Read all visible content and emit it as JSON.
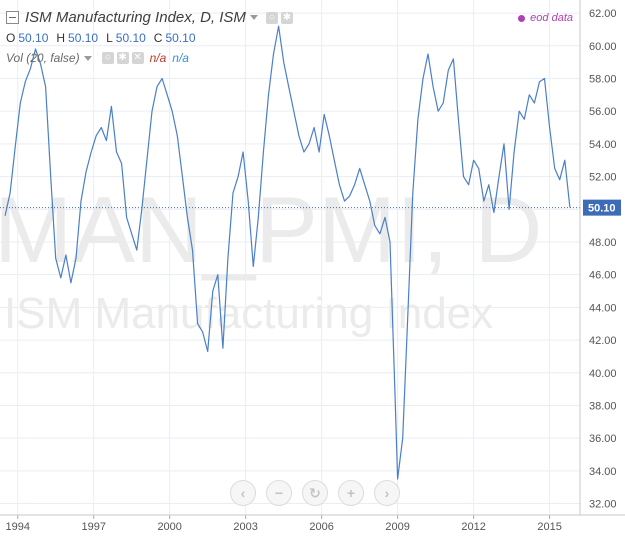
{
  "legend": {
    "title": "ISM Manufacturing Index, D, ISM",
    "ohlc": [
      {
        "label": "O",
        "value": "50.10"
      },
      {
        "label": "H",
        "value": "50.10"
      },
      {
        "label": "L",
        "value": "50.10"
      },
      {
        "label": "C",
        "value": "50.10"
      }
    ],
    "volume": {
      "label": "Vol (20, false)",
      "na1": "n/a",
      "na2": "n/a"
    }
  },
  "source_badge": "eod data",
  "watermark": {
    "symbol": "MAN_PMI, D",
    "name": "ISM Manufacturing Index"
  },
  "icons": {
    "title_buttons": [
      "settings-icon",
      "gear-icon"
    ],
    "vol_buttons": [
      "settings-icon",
      "gear-icon",
      "close-icon"
    ],
    "nav": [
      "chevron-left-icon",
      "zoom-out-icon",
      "reset-icon",
      "zoom-in-icon",
      "chevron-right-icon"
    ]
  },
  "colors": {
    "line": "#4a7fc9",
    "last_price_bg": "#3c6cb8",
    "grid": "#e9eef5",
    "watermark": "#ebebeb"
  },
  "chart_data": {
    "type": "line",
    "series": [
      {
        "name": "ISM Manufacturing Index",
        "x": [
          1993.5,
          1993.7,
          1993.9,
          1994.1,
          1994.3,
          1994.5,
          1994.7,
          1994.9,
          1995.1,
          1995.3,
          1995.5,
          1995.7,
          1995.9,
          1996.1,
          1996.3,
          1996.5,
          1996.7,
          1996.9,
          1997.1,
          1997.3,
          1997.5,
          1997.7,
          1997.9,
          1998.1,
          1998.3,
          1998.5,
          1998.7,
          1998.9,
          1999.1,
          1999.3,
          1999.5,
          1999.7,
          1999.9,
          2000.1,
          2000.3,
          2000.5,
          2000.7,
          2000.9,
          2001.1,
          2001.3,
          2001.5,
          2001.7,
          2001.9,
          2002.1,
          2002.3,
          2002.5,
          2002.7,
          2002.9,
          2003.1,
          2003.3,
          2003.5,
          2003.7,
          2003.9,
          2004.1,
          2004.3,
          2004.5,
          2004.7,
          2004.9,
          2005.1,
          2005.3,
          2005.5,
          2005.7,
          2005.9,
          2006.1,
          2006.3,
          2006.5,
          2006.7,
          2006.9,
          2007.1,
          2007.3,
          2007.5,
          2007.7,
          2007.9,
          2008.1,
          2008.3,
          2008.5,
          2008.7,
          2008.9,
          2009.0,
          2009.2,
          2009.4,
          2009.6,
          2009.8,
          2010.0,
          2010.2,
          2010.4,
          2010.6,
          2010.8,
          2011.0,
          2011.2,
          2011.4,
          2011.6,
          2011.8,
          2012.0,
          2012.2,
          2012.4,
          2012.6,
          2012.8,
          2013.0,
          2013.2,
          2013.4,
          2013.6,
          2013.8,
          2014.0,
          2014.2,
          2014.4,
          2014.6,
          2014.8,
          2015.0,
          2015.2,
          2015.4,
          2015.6,
          2015.8
        ],
        "values": [
          49.6,
          51.0,
          53.8,
          56.5,
          57.8,
          58.6,
          59.8,
          58.9,
          57.5,
          52.0,
          47.0,
          45.8,
          47.2,
          45.5,
          47.0,
          50.5,
          52.3,
          53.5,
          54.5,
          55.0,
          54.2,
          56.3,
          53.5,
          52.8,
          49.5,
          48.5,
          47.5,
          50.0,
          53.0,
          56.0,
          57.5,
          58.0,
          57.0,
          56.0,
          54.5,
          52.0,
          49.5,
          47.5,
          43.0,
          42.5,
          41.3,
          45.0,
          46.0,
          41.5,
          47.0,
          51.0,
          52.0,
          53.5,
          50.5,
          46.5,
          49.5,
          53.5,
          57.0,
          59.5,
          61.2,
          59.0,
          57.5,
          56.0,
          54.5,
          53.5,
          54.0,
          55.0,
          53.5,
          55.8,
          54.5,
          53.0,
          51.5,
          50.5,
          50.8,
          51.5,
          52.5,
          51.5,
          50.5,
          49.0,
          48.5,
          49.5,
          48.0,
          38.5,
          33.5,
          36.0,
          43.5,
          51.0,
          55.5,
          58.0,
          59.5,
          57.5,
          56.0,
          56.5,
          58.5,
          59.2,
          55.5,
          52.0,
          51.5,
          53.0,
          52.5,
          50.5,
          51.5,
          49.8,
          52.0,
          54.0,
          50.0,
          53.5,
          56.0,
          55.5,
          57.0,
          56.5,
          57.8,
          58.0,
          55.0,
          52.5,
          51.8,
          53.0,
          50.1
        ]
      }
    ],
    "last_value": "50.10",
    "xlim": [
      1993.3,
      2016.2
    ],
    "ylim": [
      31.3,
      62.8
    ],
    "x_ticks": [
      "1994",
      "1997",
      "2000",
      "2003",
      "2006",
      "2009",
      "2012",
      "2015"
    ],
    "x_tick_values": [
      1994.0,
      1997.0,
      2000.0,
      2003.0,
      2006.0,
      2009.0,
      2012.0,
      2015.0
    ],
    "y_ticks": [
      "32.00",
      "34.00",
      "36.00",
      "38.00",
      "40.00",
      "42.00",
      "44.00",
      "46.00",
      "48.00",
      "50.00",
      "52.00",
      "54.00",
      "56.00",
      "58.00",
      "60.00",
      "62.00"
    ],
    "grid": true
  }
}
